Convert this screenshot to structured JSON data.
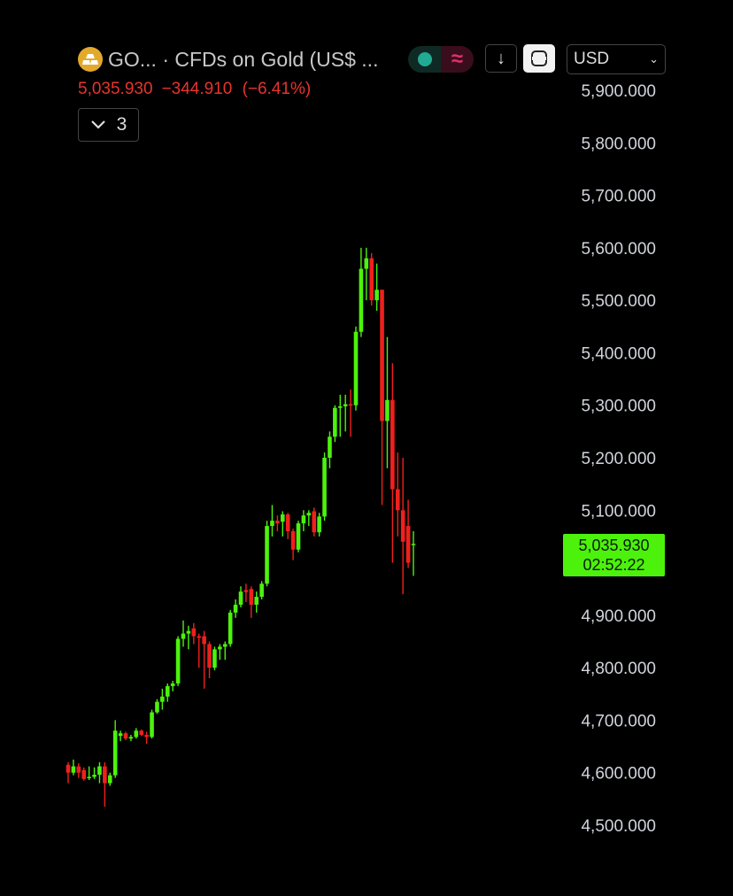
{
  "header": {
    "symbol_title": "GO... · CFDs on Gold (US$ ...",
    "logo_icon": "gold-bars-icon",
    "market_status_icon": "teal-dot-icon",
    "indicator_icon": "approx-wave-icon",
    "download_icon": "down-arrow-icon",
    "fullscreen_icon": "square-frame-icon",
    "currency": "USD"
  },
  "quote": {
    "price": "5,035.930",
    "change": "−344.910",
    "change_pct": "(−6.41%)"
  },
  "collapse": {
    "count": "3"
  },
  "price_label": {
    "price": "5,035.930",
    "countdown": "02:52:22"
  },
  "colors": {
    "up": "#4cf20c",
    "down": "#f0201c",
    "background": "#000000",
    "down_text": "#e8332f"
  },
  "chart_data": {
    "type": "candlestick",
    "ylim": [
      4500,
      5900
    ],
    "yticks": [
      "5,900.000",
      "5,800.000",
      "5,700.000",
      "5,600.000",
      "5,500.000",
      "5,400.000",
      "5,300.000",
      "5,200.000",
      "5,100.000",
      "4,900.000",
      "4,800.000",
      "4,700.000",
      "4,600.000",
      "4,500.000"
    ],
    "ytick_values": [
      5900,
      5800,
      5700,
      5600,
      5500,
      5400,
      5300,
      5200,
      5100,
      4900,
      4800,
      4700,
      4600,
      4500
    ],
    "grid": false,
    "ohlc": [
      [
        4615,
        4620,
        4580,
        4600
      ],
      [
        4600,
        4625,
        4595,
        4612
      ],
      [
        4612,
        4618,
        4590,
        4600
      ],
      [
        4605,
        4610,
        4585,
        4588
      ],
      [
        4590,
        4612,
        4586,
        4592
      ],
      [
        4592,
        4610,
        4588,
        4596
      ],
      [
        4596,
        4620,
        4580,
        4612
      ],
      [
        4612,
        4620,
        4535,
        4580
      ],
      [
        4580,
        4600,
        4575,
        4595
      ],
      [
        4595,
        4700,
        4590,
        4680
      ],
      [
        4670,
        4680,
        4660,
        4675
      ],
      [
        4675,
        4678,
        4662,
        4665
      ],
      [
        4665,
        4672,
        4660,
        4668
      ],
      [
        4668,
        4685,
        4665,
        4680
      ],
      [
        4680,
        4682,
        4670,
        4672
      ],
      [
        4672,
        4678,
        4655,
        4668
      ],
      [
        4668,
        4720,
        4665,
        4715
      ],
      [
        4715,
        4740,
        4712,
        4735
      ],
      [
        4735,
        4760,
        4720,
        4745
      ],
      [
        4745,
        4770,
        4735,
        4765
      ],
      [
        4765,
        4775,
        4755,
        4770
      ],
      [
        4770,
        4860,
        4765,
        4855
      ],
      [
        4855,
        4890,
        4840,
        4865
      ],
      [
        4865,
        4880,
        4835,
        4870
      ],
      [
        4875,
        4885,
        4845,
        4860
      ],
      [
        4860,
        4865,
        4800,
        4857
      ],
      [
        4860,
        4870,
        4760,
        4845
      ],
      [
        4845,
        4850,
        4780,
        4800
      ],
      [
        4800,
        4840,
        4795,
        4835
      ],
      [
        4835,
        4845,
        4815,
        4840
      ],
      [
        4840,
        4850,
        4815,
        4845
      ],
      [
        4845,
        4910,
        4840,
        4905
      ],
      [
        4905,
        4930,
        4895,
        4920
      ],
      [
        4920,
        4955,
        4915,
        4945
      ],
      [
        4948,
        4960,
        4925,
        4944
      ],
      [
        4950,
        4955,
        4895,
        4920
      ],
      [
        4920,
        4945,
        4905,
        4935
      ],
      [
        4935,
        4965,
        4930,
        4960
      ],
      [
        4960,
        5080,
        4955,
        5070
      ],
      [
        5070,
        5110,
        5050,
        5080
      ],
      [
        5080,
        5090,
        5060,
        5075
      ],
      [
        5078,
        5098,
        5050,
        5092
      ],
      [
        5092,
        5095,
        5045,
        5060
      ],
      [
        5060,
        5065,
        5005,
        5025
      ],
      [
        5025,
        5080,
        5020,
        5075
      ],
      [
        5075,
        5100,
        5060,
        5090
      ],
      [
        5090,
        5100,
        5070,
        5095
      ],
      [
        5098,
        5105,
        5050,
        5058
      ],
      [
        5058,
        5095,
        5050,
        5088
      ],
      [
        5088,
        5210,
        5080,
        5200
      ],
      [
        5200,
        5250,
        5180,
        5240
      ],
      [
        5240,
        5300,
        5230,
        5295
      ],
      [
        5295,
        5320,
        5240,
        5298
      ],
      [
        5298,
        5320,
        5250,
        5302
      ],
      [
        5302,
        5330,
        5240,
        5300
      ],
      [
        5300,
        5450,
        5290,
        5440
      ],
      [
        5440,
        5600,
        5430,
        5560
      ],
      [
        5560,
        5600,
        5500,
        5580
      ],
      [
        5580,
        5590,
        5490,
        5500
      ],
      [
        5500,
        5570,
        5480,
        5520
      ],
      [
        5520,
        5520,
        5110,
        5270
      ],
      [
        5270,
        5430,
        5180,
        5310
      ],
      [
        5310,
        5380,
        5000,
        5140
      ],
      [
        5140,
        5210,
        5050,
        5100
      ],
      [
        5100,
        5200,
        4940,
        5040
      ],
      [
        5070,
        5120,
        4990,
        5000
      ],
      [
        5035,
        5060,
        4975,
        5036
      ]
    ],
    "last_price": 5035.93
  }
}
